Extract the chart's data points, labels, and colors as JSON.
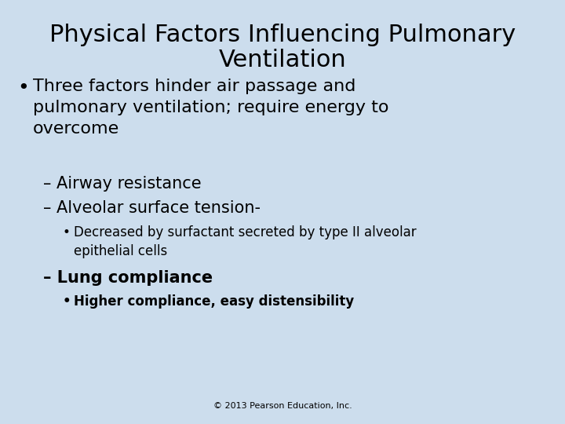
{
  "title_line1": "Physical Factors Influencing Pulmonary",
  "title_line2": "Ventilation",
  "background_color": "#ccdded",
  "text_color": "#000000",
  "title_fontsize": 22,
  "body_fontsize": 16,
  "sub_fontsize": 15,
  "sub2_fontsize": 12,
  "footer": "© 2013 Pearson Education, Inc.",
  "footer_fontsize": 8,
  "content": [
    {
      "type": "bullet1",
      "text": "Three factors hinder air passage and\npulmonary ventilation; require energy to\novercome"
    },
    {
      "type": "bullet2_bold",
      "text": "– Airway resistance"
    },
    {
      "type": "bullet2_bold",
      "text": "– Alveolar surface tension-"
    },
    {
      "type": "bullet3",
      "text": "Decreased by surfactant secreted by type II alveolar\nepithelial cells"
    },
    {
      "type": "bullet2_bold",
      "text": "– Lung compliance"
    },
    {
      "type": "bullet3_bold",
      "text": "Higher compliance, easy distensibility"
    }
  ]
}
